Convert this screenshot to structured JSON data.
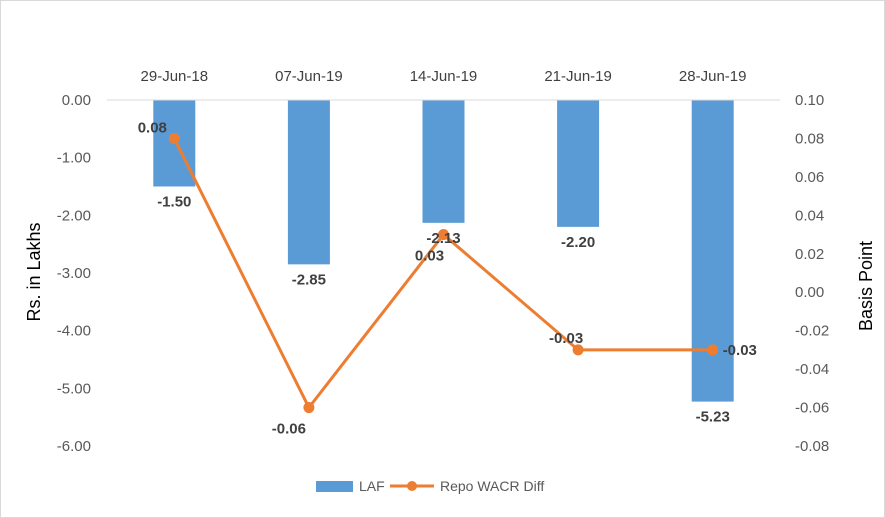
{
  "chart_data": {
    "type": "bar",
    "categories": [
      "29-Jun-18",
      "07-Jun-19",
      "14-Jun-19",
      "21-Jun-19",
      "28-Jun-19"
    ],
    "series": [
      {
        "name": "LAF",
        "type": "bar",
        "axis": "left",
        "color": "#5b9bd5",
        "values": [
          -1.5,
          -2.85,
          -2.13,
          -2.2,
          -5.23
        ],
        "labels": [
          "-1.50",
          "-2.85",
          "-2.13",
          "-2.20",
          "-5.23"
        ]
      },
      {
        "name": "Repo WACR Diff",
        "type": "line",
        "axis": "right",
        "color": "#ed7d31",
        "values": [
          0.08,
          -0.06,
          0.03,
          -0.03,
          -0.03
        ],
        "labels": [
          "0.08",
          "-0.06",
          "0.03",
          "-0.03",
          "-0.03"
        ]
      }
    ],
    "ylabel": "Rs. in Lakhs",
    "y2label": "Basis Point",
    "ylim": [
      -6,
      0
    ],
    "y2lim": [
      -0.08,
      0.1
    ],
    "yticks": [
      "0.00",
      "-1.00",
      "-2.00",
      "-3.00",
      "-4.00",
      "-5.00",
      "-6.00"
    ],
    "y2ticks": [
      "0.10",
      "0.08",
      "0.06",
      "0.04",
      "0.02",
      "0.00",
      "-0.02",
      "-0.04",
      "-0.06",
      "-0.08"
    ],
    "category_axis_position": "top",
    "grid": false,
    "legend": "bottom"
  }
}
